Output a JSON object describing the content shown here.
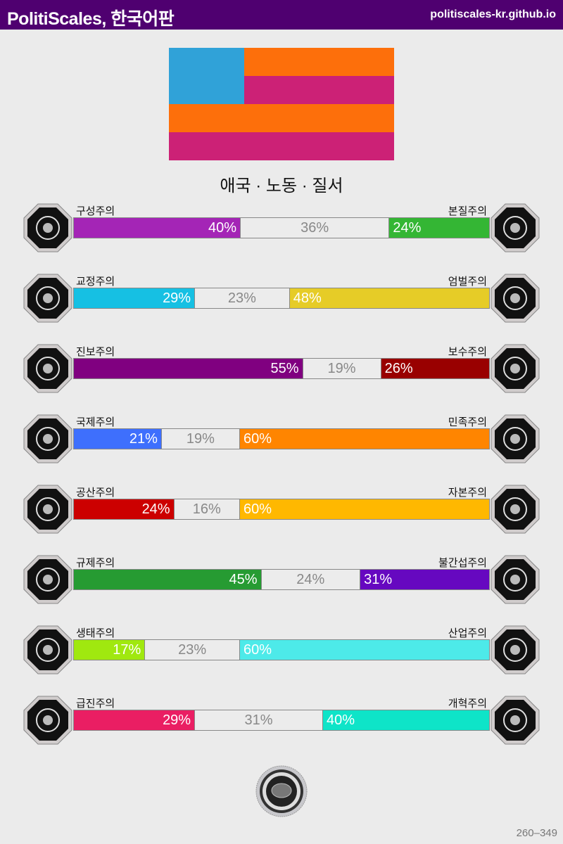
{
  "header": {
    "title": "PolitiScales, 한국어판",
    "url": "politiscales-kr.github.io"
  },
  "flag": {
    "canton": "#30a2d8",
    "stripe_a": "#fd6f0b",
    "stripe_b": "#cc2176"
  },
  "ideology": "애국 · 노동 · 질서",
  "axes": [
    {
      "left": "구성주의",
      "right": "본질주의",
      "lv": "40%",
      "mv": "36%",
      "rv": "24%",
      "lp": 40,
      "mp": 36,
      "rp": 24,
      "lc": "#a425b6",
      "rc": "#34b634",
      "li": "eye-icon",
      "ri": "flower-icon"
    },
    {
      "left": "교정주의",
      "right": "엄벌주의",
      "lv": "29%",
      "mv": "23%",
      "rv": "48%",
      "lp": 29,
      "mp": 23,
      "rp": 48,
      "lc": "#16c0e3",
      "rc": "#e6cc27",
      "li": "handshake-icon",
      "ri": "prison-bars-icon"
    },
    {
      "left": "진보주의",
      "right": "보수주의",
      "lv": "55%",
      "mv": "19%",
      "rv": "26%",
      "lp": 55,
      "mp": 19,
      "rp": 26,
      "lc": "#800080",
      "rc": "#990000",
      "li": "comet-icon",
      "ri": "quill-icon"
    },
    {
      "left": "국제주의",
      "right": "민족주의",
      "lv": "21%",
      "mv": "19%",
      "rv": "60%",
      "lp": 21,
      "mp": 19,
      "rp": 60,
      "lc": "#3e6ffd",
      "rc": "#ff8500",
      "li": "globe-icon",
      "ri": "flag-icon"
    },
    {
      "left": "공산주의",
      "right": "자본주의",
      "lv": "24%",
      "mv": "16%",
      "rv": "60%",
      "lp": 24,
      "mp": 16,
      "rp": 60,
      "lc": "#cc0000",
      "rc": "#ffb800",
      "li": "hammer-sickle-icon",
      "ri": "money-bag-icon"
    },
    {
      "left": "규제주의",
      "right": "불간섭주의",
      "lv": "45%",
      "mv": "24%",
      "rv": "31%",
      "lp": 45,
      "mp": 24,
      "rp": 31,
      "lc": "#269b32",
      "rc": "#6608c0",
      "li": "ruler-icon",
      "ri": "butterfly-icon"
    },
    {
      "left": "생태주의",
      "right": "산업주의",
      "lv": "17%",
      "mv": "23%",
      "rv": "60%",
      "lp": 17,
      "mp": 23,
      "rp": 60,
      "lc": "#a0e80f",
      "rc": "#4deae9",
      "li": "sprout-icon",
      "ri": "gear-icon"
    },
    {
      "left": "급진주의",
      "right": "개혁주의",
      "lv": "29%",
      "mv": "31%",
      "rv": "40%",
      "lp": 29,
      "mp": 31,
      "rp": 40,
      "lc": "#ea1e63",
      "rc": "#0ee4c8",
      "li": "fist-icon",
      "ri": "ballot-icon"
    }
  ],
  "footer": "260–349"
}
